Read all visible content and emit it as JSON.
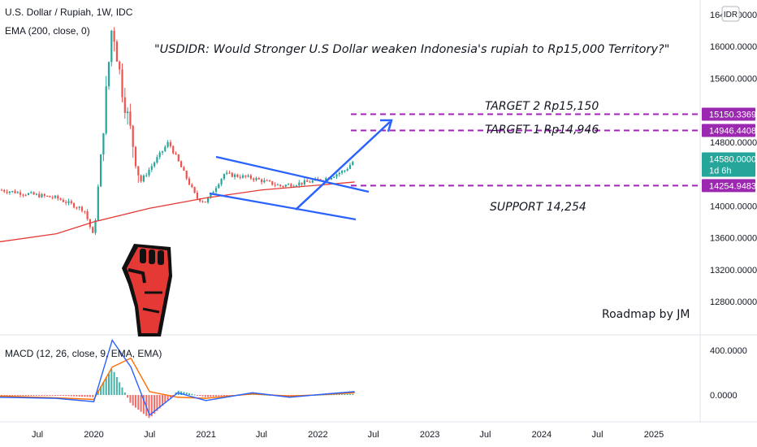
{
  "symbol_header": {
    "title": "U.S. Dollar / Rupiah, 1W, IDC",
    "indicator": "EMA (200, close, 0)"
  },
  "headline": "\"USDIDR: Would Stronger U.S  Dollar weaken Indonesia's rupiah to Rp15,000 Territory?\"",
  "annotations": {
    "target2": "TARGET 2  Rp15,150",
    "target1": "TARGET 1  Rp14,946",
    "support": "SUPPORT 14,254",
    "signature": "Roadmap by JM"
  },
  "currency_badge": "IDR",
  "macd_label": "MACD (12, 26, close, 9, EMA, EMA)",
  "price_axis": {
    "ticks": [
      "16400.0000",
      "16000.0000",
      "15600.0000",
      "14800.0000",
      "14000.0000",
      "13600.0000",
      "13200.0000",
      "12800.0000"
    ],
    "tick_values": [
      16400,
      16000,
      15600,
      14800,
      14000,
      13600,
      13200,
      12800
    ],
    "ylim": [
      12600,
      16600
    ]
  },
  "macd_axis": {
    "ticks": [
      "400.0000",
      "0.0000"
    ],
    "tick_values": [
      400,
      0
    ]
  },
  "price_labels": [
    {
      "text": "15150.3369",
      "value": 15150.3369,
      "color": "#9c27b0"
    },
    {
      "text": "14946.4408",
      "value": 14946.4408,
      "color": "#9c27b0"
    },
    {
      "text": "14580.0000",
      "subtext": "1d 6h",
      "value": 14580,
      "color": "#26a69a"
    },
    {
      "text": "14254.9483",
      "value": 14254.9483,
      "color": "#9c27b0"
    }
  ],
  "time_axis": {
    "labels": [
      "Jul",
      "2020",
      "Jul",
      "2021",
      "Jul",
      "2022",
      "Jul",
      "2023",
      "Jul",
      "2024",
      "Jul",
      "2025"
    ],
    "dates": [
      "2019-07",
      "2020-01",
      "2020-07",
      "2021-01",
      "2021-07",
      "2022-01",
      "2022-07",
      "2023-01",
      "2023-07",
      "2024-01",
      "2024-07",
      "2025-01"
    ]
  },
  "colors": {
    "up": "#26a69a",
    "down": "#ef5350",
    "ema": "#e53935",
    "level": "#9c27b0",
    "pattern": "#2962ff",
    "macd_line": "#2962ff",
    "signal_line": "#ff6d00",
    "fist": "#e53935"
  },
  "chart_data": [
    {
      "type": "candlestick",
      "title": "U.S. Dollar / Rupiah, 1W, IDC",
      "x_range": [
        "2019-03",
        "2025-06"
      ],
      "ylim": [
        12600,
        16600
      ],
      "close_series": [
        {
          "date": "2019-03",
          "close": 14200
        },
        {
          "date": "2019-06",
          "close": 14150
        },
        {
          "date": "2019-09",
          "close": 14100
        },
        {
          "date": "2019-12",
          "close": 13950
        },
        {
          "date": "2020-01",
          "close": 13600
        },
        {
          "date": "2020-03",
          "close": 16300
        },
        {
          "date": "2020-04",
          "close": 15500
        },
        {
          "date": "2020-06",
          "close": 14300
        },
        {
          "date": "2020-09",
          "close": 14800
        },
        {
          "date": "2020-12",
          "close": 14100
        },
        {
          "date": "2021-01",
          "close": 14050
        },
        {
          "date": "2021-03",
          "close": 14400
        },
        {
          "date": "2021-06",
          "close": 14350
        },
        {
          "date": "2021-09",
          "close": 14250
        },
        {
          "date": "2021-12",
          "close": 14300
        },
        {
          "date": "2022-02",
          "close": 14350
        },
        {
          "date": "2022-04",
          "close": 14450
        },
        {
          "date": "2022-05",
          "close": 14580
        }
      ],
      "ema200": [
        {
          "date": "2019-03",
          "value": 13550
        },
        {
          "date": "2019-09",
          "value": 13650
        },
        {
          "date": "2020-01",
          "value": 13800
        },
        {
          "date": "2020-07",
          "value": 13970
        },
        {
          "date": "2021-01",
          "value": 14100
        },
        {
          "date": "2021-07",
          "value": 14200
        },
        {
          "date": "2022-01",
          "value": 14260
        },
        {
          "date": "2022-05",
          "value": 14300
        }
      ],
      "levels": [
        {
          "name": "TARGET 2",
          "value": 15150.3369
        },
        {
          "name": "TARGET 1",
          "value": 14946.4408
        },
        {
          "name": "SUPPORT",
          "value": 14254.9483
        }
      ]
    },
    {
      "type": "line",
      "title": "MACD (12, 26, close, 9, EMA, EMA)",
      "ylim": [
        -300,
        500
      ],
      "series": [
        {
          "name": "MACD",
          "values": [
            {
              "date": "2019-03",
              "value": -20
            },
            {
              "date": "2019-09",
              "value": -30
            },
            {
              "date": "2020-01",
              "value": -60
            },
            {
              "date": "2020-03",
              "value": 490
            },
            {
              "date": "2020-05",
              "value": 250
            },
            {
              "date": "2020-07",
              "value": -180
            },
            {
              "date": "2020-10",
              "value": 20
            },
            {
              "date": "2021-01",
              "value": -50
            },
            {
              "date": "2021-06",
              "value": 20
            },
            {
              "date": "2021-10",
              "value": -20
            },
            {
              "date": "2022-02",
              "value": 10
            },
            {
              "date": "2022-05",
              "value": 30
            }
          ]
        },
        {
          "name": "Signal",
          "values": [
            {
              "date": "2019-03",
              "value": -10
            },
            {
              "date": "2019-09",
              "value": -25
            },
            {
              "date": "2020-01",
              "value": -40
            },
            {
              "date": "2020-03",
              "value": 250
            },
            {
              "date": "2020-05",
              "value": 330
            },
            {
              "date": "2020-07",
              "value": 30
            },
            {
              "date": "2020-10",
              "value": -20
            },
            {
              "date": "2021-01",
              "value": -30
            },
            {
              "date": "2021-06",
              "value": 10
            },
            {
              "date": "2021-10",
              "value": -10
            },
            {
              "date": "2022-02",
              "value": 5
            },
            {
              "date": "2022-05",
              "value": 20
            }
          ]
        }
      ]
    }
  ]
}
